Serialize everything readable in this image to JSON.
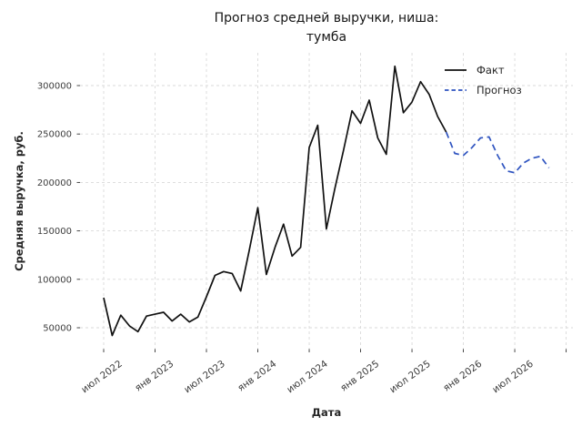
{
  "figure": {
    "title_line1": "Прогноз средней выручки, ниша:",
    "title_line2": "тумба"
  },
  "chart_data": {
    "type": "line",
    "title": "Прогноз средней выручки, ниша: тумба",
    "xlabel": "Дата",
    "ylabel": "Средняя выручка, руб.",
    "grid": "dashed-light-gray",
    "legend_position": "upper right",
    "ylim": [
      28000,
      334000
    ],
    "yticks": [
      50000,
      100000,
      150000,
      200000,
      250000,
      300000
    ],
    "xticks": [
      {
        "label": "июл 2022",
        "month_index": 0
      },
      {
        "label": "янв 2023",
        "month_index": 6
      },
      {
        "label": "июл 2023",
        "month_index": 12
      },
      {
        "label": "янв 2024",
        "month_index": 18
      },
      {
        "label": "июл 2024",
        "month_index": 24
      },
      {
        "label": "янв 2025",
        "month_index": 30
      },
      {
        "label": "июл 2025",
        "month_index": 36
      },
      {
        "label": "янв 2026",
        "month_index": 42
      },
      {
        "label": "июл 2026",
        "month_index": 48
      },
      {
        "label": "",
        "month_index": 54
      }
    ],
    "series": [
      {
        "name": "Факт",
        "color": "#111111",
        "line_style": "solid",
        "start_month_index": 0,
        "months": [
          "2022-07",
          "2022-08",
          "2022-09",
          "2022-10",
          "2022-11",
          "2022-12",
          "2023-01",
          "2023-02",
          "2023-03",
          "2023-04",
          "2023-05",
          "2023-06",
          "2023-07",
          "2023-08",
          "2023-09",
          "2023-10",
          "2023-11",
          "2023-12",
          "2024-01",
          "2024-02",
          "2024-03",
          "2024-04",
          "2024-05",
          "2024-06",
          "2024-07",
          "2024-08",
          "2024-09",
          "2024-10",
          "2024-11",
          "2024-12",
          "2025-01",
          "2025-02",
          "2025-03",
          "2025-04",
          "2025-05",
          "2025-06",
          "2025-07",
          "2025-08",
          "2025-09",
          "2025-10",
          "2025-11"
        ],
        "values": [
          81000,
          42000,
          63000,
          52000,
          46000,
          62000,
          64000,
          66000,
          57000,
          64000,
          56000,
          61000,
          82000,
          104000,
          108000,
          106000,
          88000,
          130000,
          174000,
          105000,
          133000,
          157000,
          124000,
          133000,
          236000,
          259000,
          152000,
          194000,
          233000,
          274000,
          261000,
          285000,
          246000,
          229000,
          320000,
          272000,
          283000,
          304000,
          291000,
          268000,
          252000
        ]
      },
      {
        "name": "Прогноз",
        "color": "#2f54c0",
        "line_style": "dashed",
        "start_month_index": 40,
        "months": [
          "2025-11",
          "2025-12",
          "2026-01",
          "2026-02",
          "2026-03",
          "2026-04",
          "2026-05",
          "2026-06",
          "2026-07",
          "2026-08",
          "2026-09",
          "2026-10",
          "2026-11"
        ],
        "values": [
          252000,
          230000,
          228000,
          236000,
          246000,
          247000,
          228000,
          212000,
          210000,
          220000,
          225000,
          227000,
          215000
        ]
      }
    ]
  },
  "colors": {
    "background": "#ffffff",
    "grid": "#dadada",
    "tick_text": "#3c3c3c",
    "label_text": "#262626",
    "fact_line": "#111111",
    "forecast_line": "#2f54c0"
  }
}
